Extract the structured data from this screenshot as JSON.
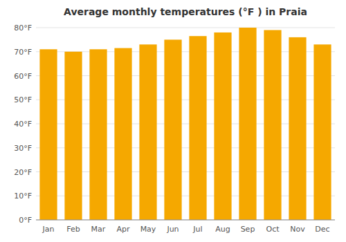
{
  "chart_data": {
    "type": "bar",
    "title": "Average monthly temperatures (°F ) in Praia",
    "categories": [
      "Jan",
      "Feb",
      "Mar",
      "Apr",
      "May",
      "Jun",
      "Jul",
      "Aug",
      "Sep",
      "Oct",
      "Nov",
      "Dec"
    ],
    "values": [
      71,
      70,
      71,
      71.5,
      73,
      75,
      76.5,
      78,
      80,
      79,
      76,
      73
    ],
    "color": "#F5A800",
    "ylim": [
      0,
      80
    ],
    "yticks": [
      {
        "value": 0,
        "label": "0°F"
      },
      {
        "value": 10,
        "label": "10°F"
      },
      {
        "value": 20,
        "label": "20°F"
      },
      {
        "value": 30,
        "label": "30°F"
      },
      {
        "value": 40,
        "label": "40°F"
      },
      {
        "value": 50,
        "label": "50°F"
      },
      {
        "value": 60,
        "label": "60°F"
      },
      {
        "value": 70,
        "label": "70°F"
      },
      {
        "value": 80,
        "label": "80°F"
      }
    ],
    "grid": true
  }
}
